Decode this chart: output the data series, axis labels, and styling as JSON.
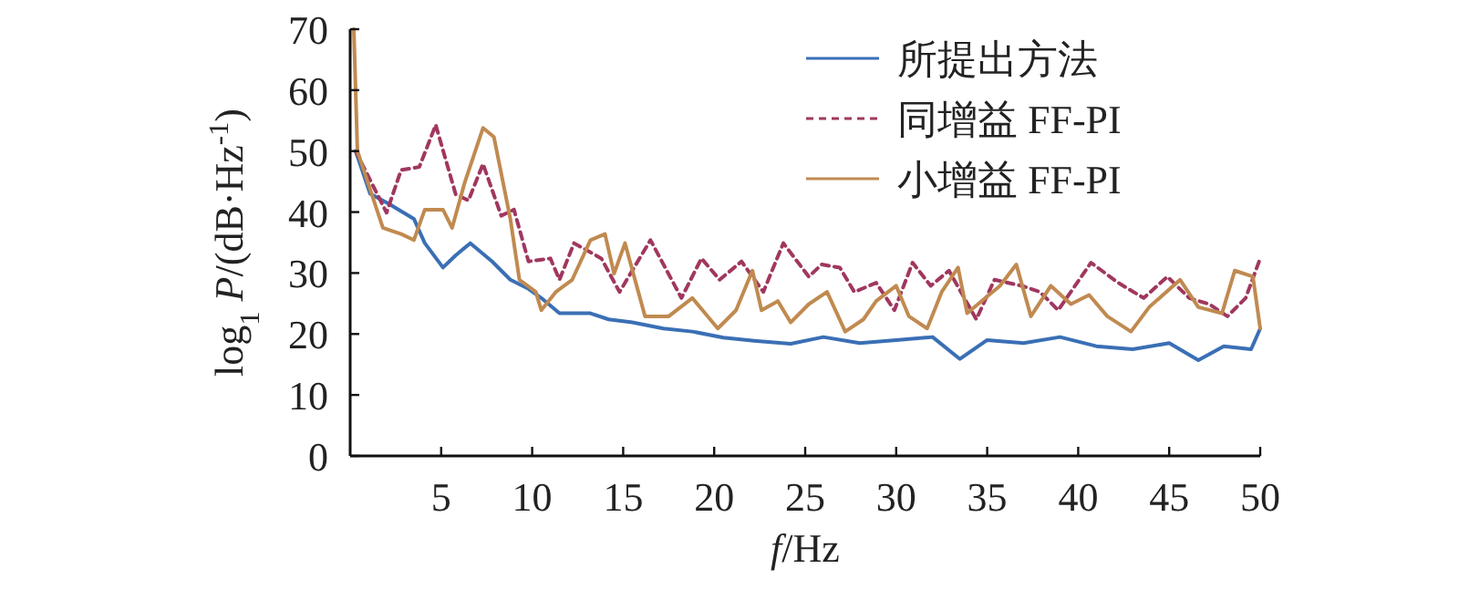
{
  "chart_data": {
    "type": "line",
    "xlabel": "*f*/Hz",
    "ylabel": "log$_{1}$ *P*/(dB·Hz$^{-1}$)",
    "xlim": [
      0,
      50
    ],
    "xticks": [
      5,
      10,
      15,
      20,
      25,
      30,
      35,
      40,
      45,
      50
    ],
    "ylim": [
      0,
      70
    ],
    "yticks": [
      0,
      10,
      20,
      30,
      40,
      50,
      60,
      70
    ],
    "grid": false,
    "legend": "top right",
    "series": [
      {
        "name": "所提出方法",
        "color": "#3a6fb5",
        "line_style": "solid",
        "x": [
          0.3,
          1.1,
          2.1,
          3.5,
          4.1,
          5.1,
          5.8,
          6.6,
          7.8,
          8.8,
          9.8,
          10.5,
          11.5,
          13.2,
          14.2,
          15.5,
          17.2,
          18.8,
          20.5,
          22.2,
          24.2,
          26,
          28,
          30,
          32,
          33.5,
          35,
          37,
          39,
          41,
          43,
          45,
          46.6,
          48,
          49.5,
          50
        ],
        "values": [
          50,
          43,
          41.4,
          38.9,
          34.9,
          30.9,
          32.9,
          34.9,
          31.9,
          28.9,
          27.4,
          25.9,
          23.4,
          23.4,
          22.4,
          21.9,
          20.9,
          20.4,
          19.4,
          18.9,
          18.4,
          19.5,
          18.5,
          19,
          19.5,
          15.9,
          19,
          18.5,
          19.5,
          18,
          17.5,
          18.5,
          15.7,
          18,
          17.5,
          20.9
        ]
      },
      {
        "name": "同增益 FF-PI",
        "color": "#a0375f",
        "line_style": "dashed",
        "x": [
          0.3,
          2.0,
          2.8,
          3.8,
          4.7,
          5.8,
          6.5,
          7.3,
          8.3,
          9.0,
          9.8,
          11,
          11.5,
          12.3,
          13.8,
          14.8,
          16.5,
          18.2,
          19.3,
          20.3,
          21.5,
          22.7,
          23.8,
          25.2,
          25.9,
          26.9,
          27.7,
          28.9,
          29.9,
          30.9,
          31.9,
          32.9,
          34.4,
          35.4,
          36.9,
          37.9,
          38.9,
          40.7,
          42.2,
          43.6,
          44.9,
          46.1,
          47.2,
          48.2,
          49.2,
          50
        ],
        "values": [
          50,
          39.9,
          46.9,
          47.4,
          54.3,
          42.9,
          41.9,
          47.9,
          39.4,
          40.4,
          31.9,
          32.4,
          28.9,
          34.9,
          32.4,
          26.9,
          35.4,
          25.9,
          32.4,
          28.9,
          31.9,
          26.9,
          34.9,
          29.4,
          31.4,
          30.9,
          26.9,
          28.4,
          23.9,
          31.7,
          27.9,
          30.4,
          22.4,
          28.9,
          27.9,
          26.9,
          23.9,
          31.7,
          28.4,
          25.9,
          29.4,
          25.9,
          24.9,
          22.9,
          25.9,
          32.4
        ]
      },
      {
        "name": "小增益 FF-PI",
        "color": "#c08a50",
        "line_style": "solid",
        "x": [
          0.2,
          0.4,
          1.3,
          1.8,
          2.8,
          3.5,
          4.1,
          5.1,
          5.6,
          6.3,
          7.3,
          7.9,
          8.8,
          9.3,
          10.2,
          10.5,
          11.3,
          12.2,
          13.2,
          14.0,
          14.5,
          15.1,
          16.2,
          17.5,
          18.8,
          20.2,
          21.2,
          22.1,
          22.6,
          23.5,
          24.2,
          25.2,
          26.2,
          27.2,
          28.2,
          28.9,
          30.0,
          30.7,
          31.7,
          32.5,
          33.4,
          33.9,
          34.9,
          35.7,
          36.6,
          37.4,
          38.5,
          39.6,
          40.6,
          41.6,
          42.9,
          43.9,
          45.6,
          46.6,
          47.9,
          48.6,
          49.6,
          50
        ],
        "values": [
          70,
          50,
          41.9,
          37.4,
          36.4,
          35.4,
          40.4,
          40.4,
          37.4,
          44.9,
          53.8,
          52.3,
          38.9,
          28.9,
          26.9,
          23.9,
          26.9,
          28.9,
          35.4,
          36.4,
          29.9,
          34.9,
          22.9,
          22.9,
          25.9,
          20.9,
          23.9,
          30.4,
          23.9,
          25.4,
          21.9,
          24.9,
          26.9,
          20.4,
          22.4,
          25.4,
          27.9,
          22.9,
          20.9,
          26.9,
          30.9,
          23.4,
          25.9,
          27.9,
          31.4,
          22.9,
          27.9,
          24.9,
          26.4,
          22.9,
          20.4,
          24.4,
          28.9,
          24.4,
          23.4,
          30.4,
          29.4,
          20.9
        ]
      }
    ]
  }
}
